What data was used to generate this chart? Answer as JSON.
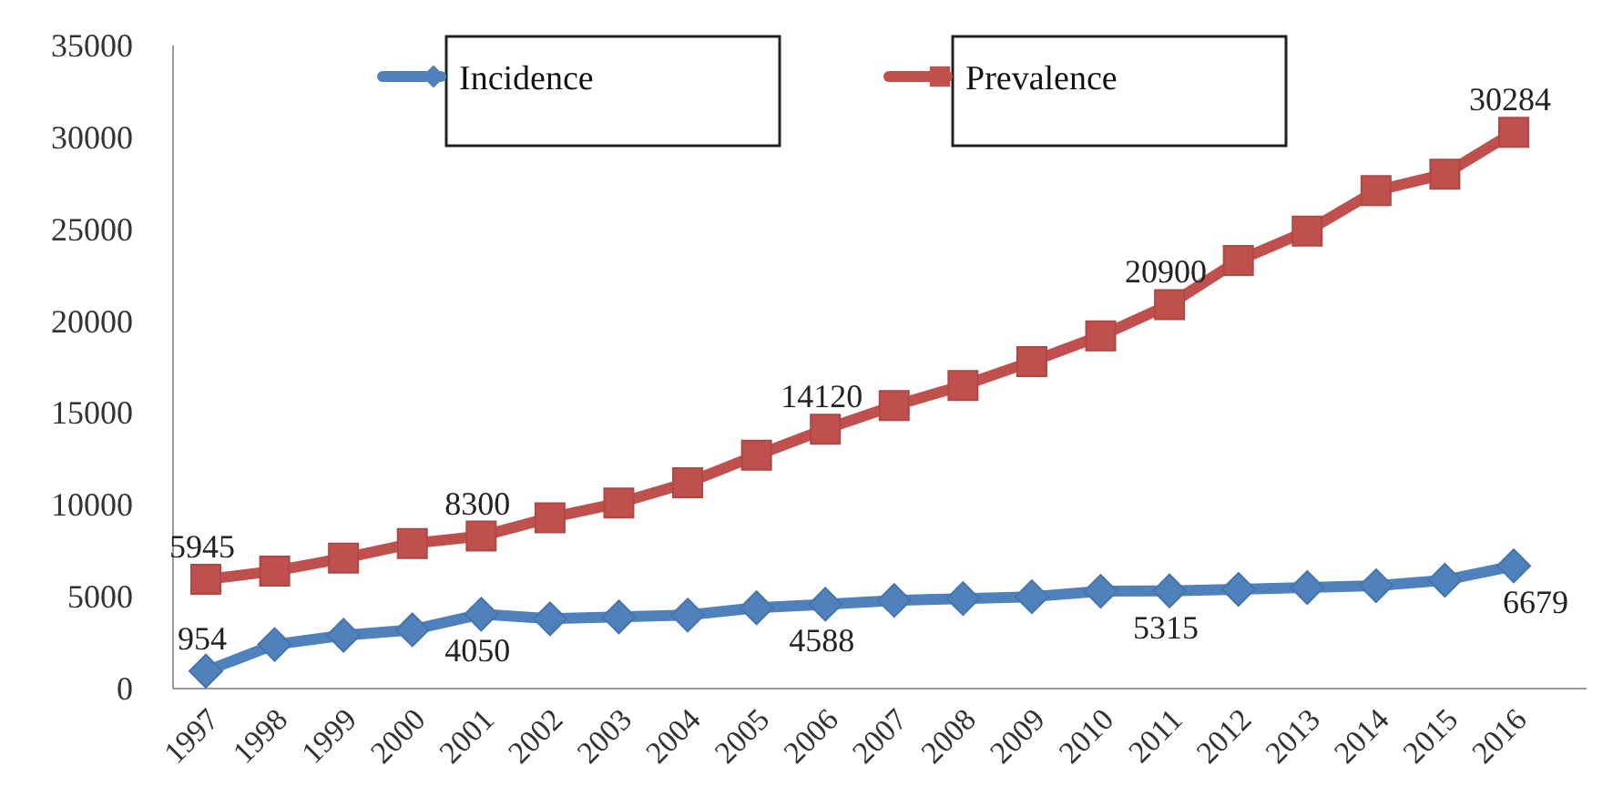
{
  "chart_data": {
    "type": "line",
    "categories": [
      "1997",
      "1998",
      "1999",
      "2000",
      "2001",
      "2002",
      "2003",
      "2004",
      "2005",
      "2006",
      "2007",
      "2008",
      "2009",
      "2010",
      "2011",
      "2012",
      "2013",
      "2014",
      "2015",
      "2016"
    ],
    "series": [
      {
        "name": "Incidence",
        "color": "#4f81bd",
        "marker": "diamond",
        "values": [
          954,
          2400,
          2900,
          3200,
          4050,
          3800,
          3900,
          4000,
          4400,
          4588,
          4800,
          4900,
          5000,
          5300,
          5315,
          5400,
          5500,
          5600,
          5900,
          6679
        ],
        "value_labels": [
          "954",
          null,
          null,
          null,
          "4050",
          null,
          null,
          null,
          null,
          "4588",
          null,
          null,
          null,
          null,
          "5315",
          null,
          null,
          null,
          null,
          "6679"
        ]
      },
      {
        "name": "Prevalence",
        "color": "#c0504d",
        "marker": "square",
        "values": [
          5945,
          6400,
          7100,
          7900,
          8300,
          9300,
          10100,
          11200,
          12700,
          14120,
          15400,
          16500,
          17800,
          19200,
          20900,
          23300,
          24900,
          27100,
          28000,
          30284
        ],
        "value_labels": [
          "5945",
          null,
          null,
          null,
          "8300",
          null,
          null,
          null,
          null,
          "14120",
          null,
          null,
          null,
          null,
          "20900",
          null,
          null,
          null,
          null,
          "30284"
        ]
      }
    ],
    "ylim": [
      0,
      35000
    ],
    "yticks": [
      0,
      5000,
      10000,
      15000,
      20000,
      25000,
      30000,
      35000
    ],
    "grid": false,
    "legend": "top"
  }
}
